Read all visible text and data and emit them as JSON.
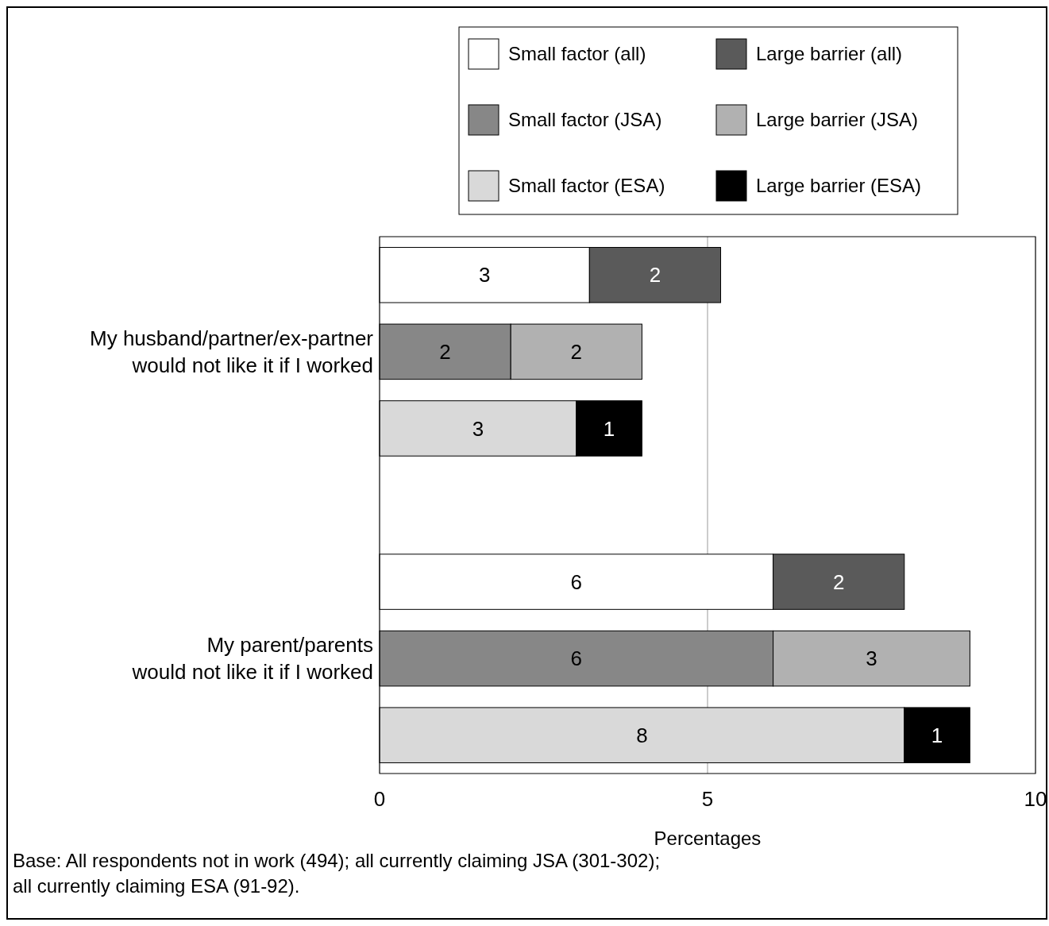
{
  "chart_data": {
    "type": "bar",
    "orientation": "horizontal",
    "stacked": true,
    "categories": [
      null,
      "My husband/partner/ex-partner\nwould not like it if I worked",
      null,
      null,
      null,
      "My parent/parents\nwould not like it if I worked",
      null
    ],
    "series": [
      {
        "name": "Small factor (all)",
        "color": "#ffffff",
        "values": [
          3.2,
          null,
          null,
          null,
          6,
          null,
          null
        ],
        "value_labels": [
          "3",
          null,
          null,
          null,
          "6",
          null,
          null
        ]
      },
      {
        "name": "Large barrier (all)",
        "color": "#5a5a5a",
        "values": [
          2,
          null,
          null,
          null,
          2,
          null,
          null
        ],
        "value_labels": [
          "2",
          null,
          null,
          null,
          "2",
          null,
          null
        ]
      },
      {
        "name": "Small factor (JSA)",
        "color": "#878787",
        "values": [
          null,
          2,
          null,
          null,
          null,
          6,
          null
        ],
        "value_labels": [
          null,
          "2",
          null,
          null,
          null,
          "6",
          null
        ]
      },
      {
        "name": "Large barrier (JSA)",
        "color": "#b1b1b1",
        "values": [
          null,
          2,
          null,
          null,
          null,
          3,
          null
        ],
        "value_labels": [
          null,
          "2",
          null,
          null,
          null,
          "3",
          null
        ]
      },
      {
        "name": "Small factor (ESA)",
        "color": "#d9d9d9",
        "values": [
          null,
          null,
          3,
          null,
          null,
          null,
          8
        ],
        "value_labels": [
          null,
          null,
          "3",
          null,
          null,
          null,
          "8"
        ]
      },
      {
        "name": "Large barrier (ESA)",
        "color": "#000000",
        "values": [
          null,
          null,
          1,
          null,
          null,
          null,
          1
        ],
        "value_labels": [
          null,
          null,
          "1",
          null,
          null,
          null,
          "1"
        ]
      }
    ],
    "xlim": [
      0,
      10
    ],
    "xticks": [
      0,
      5,
      10
    ],
    "grid": "x",
    "legend": "top right",
    "xlabel": "Percentages",
    "annotations": [
      "Base: All respondents not in work (494); all currently claiming JSA (301-302);\nall currently claiming ESA (91-92)."
    ]
  }
}
